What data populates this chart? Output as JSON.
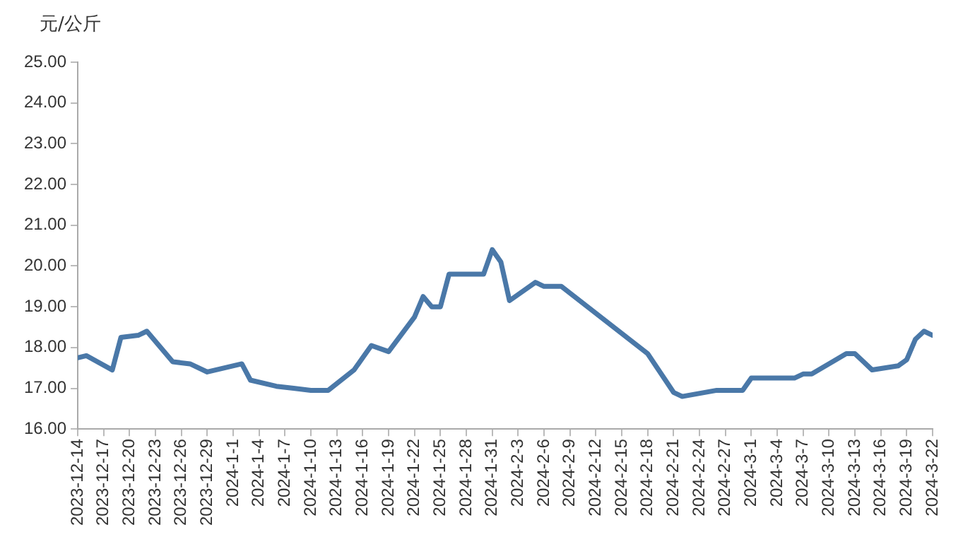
{
  "chart_data": {
    "type": "line",
    "ylabel": "元/公斤",
    "x": [
      "2023-12-14",
      "2023-12-15",
      "2023-12-18",
      "2023-12-19",
      "2023-12-21",
      "2023-12-22",
      "2023-12-25",
      "2023-12-27",
      "2023-12-29",
      "2024-01-02",
      "2024-01-03",
      "2024-01-06",
      "2024-01-08",
      "2024-01-10",
      "2024-01-12",
      "2024-01-15",
      "2024-01-17",
      "2024-01-19",
      "2024-01-22",
      "2024-01-23",
      "2024-01-24",
      "2024-01-25",
      "2024-01-26",
      "2024-01-30",
      "2024-01-31",
      "2024-02-01",
      "2024-02-02",
      "2024-02-05",
      "2024-02-06",
      "2024-02-08",
      "2024-02-18",
      "2024-02-21",
      "2024-02-22",
      "2024-02-26",
      "2024-02-29",
      "2024-03-01",
      "2024-03-06",
      "2024-03-07",
      "2024-03-08",
      "2024-03-12",
      "2024-03-13",
      "2024-03-14",
      "2024-03-15",
      "2024-03-18",
      "2024-03-19",
      "2024-03-20",
      "2024-03-21",
      "2024-03-22"
    ],
    "series": [
      {
        "color": "#4a78a8",
        "values": [
          17.75,
          17.8,
          17.45,
          18.25,
          18.3,
          18.4,
          17.65,
          17.6,
          17.4,
          17.6,
          17.2,
          17.05,
          17.0,
          16.95,
          16.95,
          17.45,
          18.05,
          17.9,
          18.75,
          19.25,
          19.0,
          19.0,
          19.8,
          19.8,
          20.4,
          20.1,
          19.15,
          19.6,
          19.5,
          19.5,
          17.85,
          16.9,
          16.8,
          16.95,
          16.95,
          17.25,
          17.25,
          17.35,
          17.35,
          17.85,
          17.85,
          17.65,
          17.45,
          17.55,
          17.7,
          18.2,
          18.4,
          18.3
        ]
      }
    ],
    "ylim": [
      16,
      25
    ],
    "yticks": [
      {
        "value": 16,
        "label": "16.00"
      },
      {
        "value": 17,
        "label": "17.00"
      },
      {
        "value": 18,
        "label": "18.00"
      },
      {
        "value": 19,
        "label": "19.00"
      },
      {
        "value": 20,
        "label": "20.00"
      },
      {
        "value": 21,
        "label": "21.00"
      },
      {
        "value": 22,
        "label": "22.00"
      },
      {
        "value": 23,
        "label": "23.00"
      },
      {
        "value": 24,
        "label": "24.00"
      },
      {
        "value": 25,
        "label": "25.00"
      }
    ],
    "xlim": [
      "2023-12-14",
      "2024-03-22"
    ],
    "xticks": [
      {
        "value": "2023-12-14",
        "label": "2023-12-14"
      },
      {
        "value": "2023-12-17",
        "label": "2023-12-17"
      },
      {
        "value": "2023-12-20",
        "label": "2023-12-20"
      },
      {
        "value": "2023-12-23",
        "label": "2023-12-23"
      },
      {
        "value": "2023-12-26",
        "label": "2023-12-26"
      },
      {
        "value": "2023-12-29",
        "label": "2023-12-29"
      },
      {
        "value": "2024-01-01",
        "label": "2024-1-1"
      },
      {
        "value": "2024-01-04",
        "label": "2024-1-4"
      },
      {
        "value": "2024-01-07",
        "label": "2024-1-7"
      },
      {
        "value": "2024-01-10",
        "label": "2024-1-10"
      },
      {
        "value": "2024-01-13",
        "label": "2024-1-13"
      },
      {
        "value": "2024-01-16",
        "label": "2024-1-16"
      },
      {
        "value": "2024-01-19",
        "label": "2024-1-19"
      },
      {
        "value": "2024-01-22",
        "label": "2024-1-22"
      },
      {
        "value": "2024-01-25",
        "label": "2024-1-25"
      },
      {
        "value": "2024-01-28",
        "label": "2024-1-28"
      },
      {
        "value": "2024-01-31",
        "label": "2024-1-31"
      },
      {
        "value": "2024-02-03",
        "label": "2024-2-3"
      },
      {
        "value": "2024-02-06",
        "label": "2024-2-6"
      },
      {
        "value": "2024-02-09",
        "label": "2024-2-9"
      },
      {
        "value": "2024-02-12",
        "label": "2024-2-12"
      },
      {
        "value": "2024-02-15",
        "label": "2024-2-15"
      },
      {
        "value": "2024-02-18",
        "label": "2024-2-18"
      },
      {
        "value": "2024-02-21",
        "label": "2024-2-21"
      },
      {
        "value": "2024-02-24",
        "label": "2024-2-24"
      },
      {
        "value": "2024-02-27",
        "label": "2024-2-27"
      },
      {
        "value": "2024-03-01",
        "label": "2024-3-1"
      },
      {
        "value": "2024-03-04",
        "label": "2024-3-4"
      },
      {
        "value": "2024-03-07",
        "label": "2024-3-7"
      },
      {
        "value": "2024-03-10",
        "label": "2024-3-10"
      },
      {
        "value": "2024-03-13",
        "label": "2024-3-13"
      },
      {
        "value": "2024-03-16",
        "label": "2024-3-16"
      },
      {
        "value": "2024-03-19",
        "label": "2024-3-19"
      },
      {
        "value": "2024-03-22",
        "label": "2024-3-22"
      }
    ],
    "grid": false,
    "legend": false,
    "marker": "none",
    "line_style": "solid"
  }
}
